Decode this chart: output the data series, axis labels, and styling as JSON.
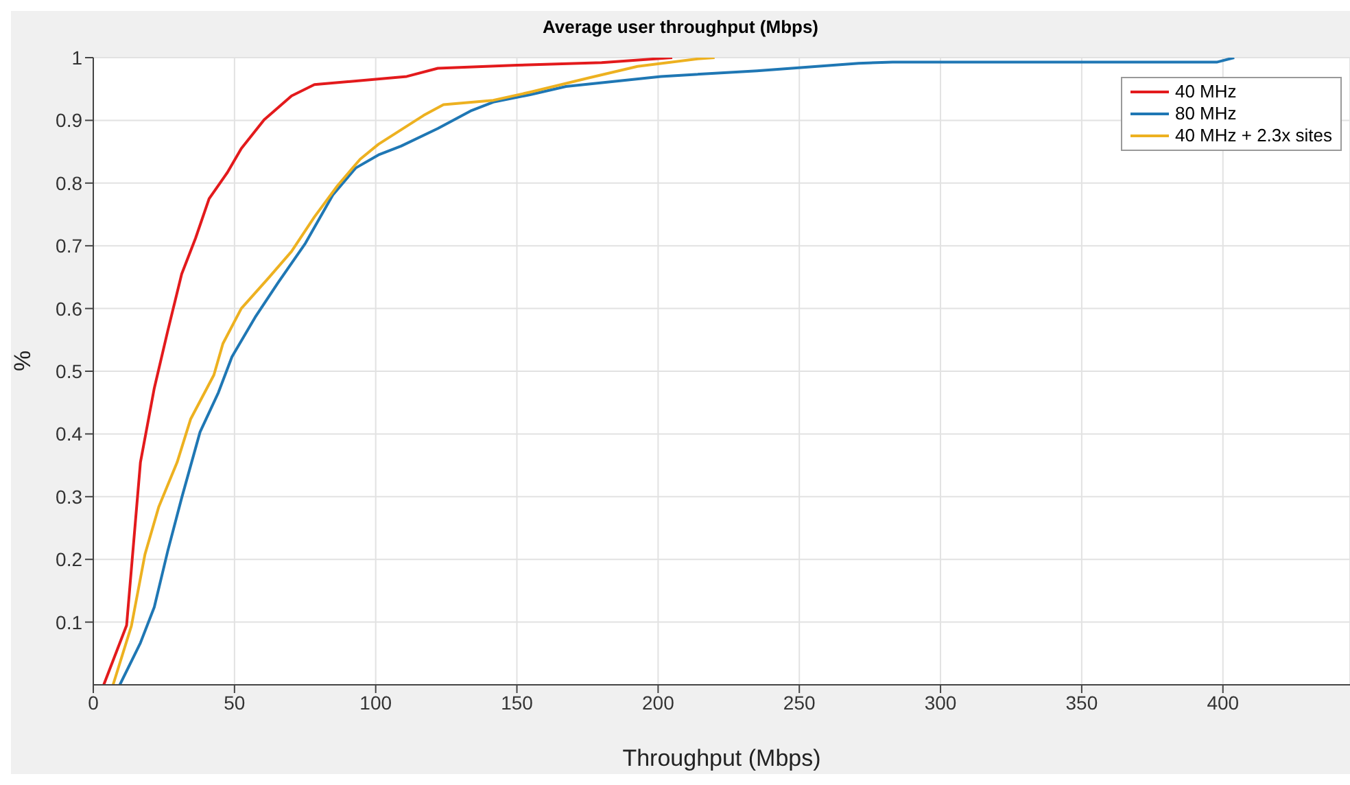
{
  "chart_data": {
    "type": "line",
    "title": "Average user throughput (Mbps)",
    "xlabel": "Throughput (Mbps)",
    "ylabel": "%",
    "xlim": [
      0,
      445
    ],
    "xticks": [
      0,
      50,
      100,
      150,
      200,
      250,
      300,
      350,
      400
    ],
    "ylim": [
      0,
      1
    ],
    "yticks": [
      0.1,
      0.2,
      0.3,
      0.4,
      0.5,
      0.6,
      0.7,
      0.8,
      0.9,
      1
    ],
    "grid": true,
    "legend": "top right",
    "marker": "none",
    "line_style": "solid",
    "series": [
      {
        "name": "40 MHz",
        "color": "#e31a1c",
        "x": [
          3.7,
          11.8,
          16.7,
          21.6,
          26.4,
          31.3,
          36.2,
          41,
          47.5,
          52.4,
          60.5,
          70.2,
          78.3,
          111,
          122,
          150,
          180,
          205
        ],
        "values": [
          0,
          0.095,
          0.355,
          0.473,
          0.565,
          0.655,
          0.712,
          0.775,
          0.817,
          0.855,
          0.901,
          0.939,
          0.957,
          0.97,
          0.983,
          0.988,
          0.992,
          1
        ]
      },
      {
        "name": "80 MHz",
        "color": "#1f77b4",
        "x": [
          9.4,
          16.7,
          21.6,
          26.4,
          31.3,
          37.8,
          44.3,
          49.1,
          57.3,
          65.4,
          75.1,
          84.8,
          92.9,
          101,
          109,
          122,
          133.6,
          141.6,
          154.7,
          167.4,
          201,
          235,
          271,
          283,
          398,
          404
        ],
        "values": [
          0,
          0.067,
          0.124,
          0.214,
          0.298,
          0.403,
          0.466,
          0.523,
          0.586,
          0.641,
          0.704,
          0.781,
          0.824,
          0.845,
          0.859,
          0.887,
          0.915,
          0.929,
          0.941,
          0.954,
          0.97,
          0.979,
          0.991,
          0.993,
          0.993,
          1
        ]
      },
      {
        "name": "40 MHz + 2.3x sites",
        "color": "#edb120",
        "x": [
          7,
          13.5,
          18.3,
          23.2,
          29.7,
          34.5,
          42.7,
          45.9,
          52.4,
          62.1,
          70.2,
          78.3,
          86.5,
          94.5,
          101,
          117,
          124,
          141.6,
          154.7,
          175.7,
          192.7,
          214,
          220
        ],
        "values": [
          0,
          0.094,
          0.208,
          0.284,
          0.355,
          0.424,
          0.494,
          0.544,
          0.6,
          0.649,
          0.691,
          0.746,
          0.796,
          0.838,
          0.862,
          0.908,
          0.925,
          0.932,
          0.945,
          0.968,
          0.986,
          0.998,
          1
        ]
      }
    ]
  }
}
